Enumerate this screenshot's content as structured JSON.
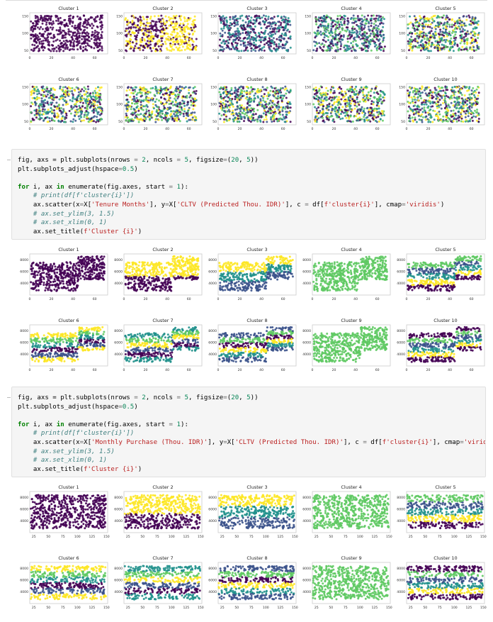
{
  "code_cells": [
    {
      "lines": [
        [
          [
            "fig, axs = plt.subplots(nrows ",
            ""
          ],
          [
            "=",
            "op"
          ],
          [
            " ",
            ""
          ],
          [
            "2",
            "num"
          ],
          [
            ", ncols ",
            ""
          ],
          [
            "=",
            "op"
          ],
          [
            " ",
            ""
          ],
          [
            "5",
            "num"
          ],
          [
            ", figsize",
            ""
          ],
          [
            "=",
            "op"
          ],
          [
            "(",
            ""
          ],
          [
            "20",
            "num"
          ],
          [
            ", ",
            ""
          ],
          [
            "5",
            "num"
          ],
          [
            "))",
            ""
          ]
        ],
        [
          [
            "plt.subplots_adjust(hspace",
            ""
          ],
          [
            "=",
            "op"
          ],
          [
            "0.5",
            "num"
          ],
          [
            ")",
            ""
          ]
        ],
        [
          [
            "",
            ""
          ]
        ],
        [
          [
            "for",
            "kw"
          ],
          [
            " i, ax ",
            ""
          ],
          [
            "in",
            "kw"
          ],
          [
            " enumerate(fig.axes, start ",
            ""
          ],
          [
            "=",
            "op"
          ],
          [
            " ",
            ""
          ],
          [
            "1",
            "num"
          ],
          [
            "):",
            ""
          ]
        ],
        [
          [
            "    ",
            ""
          ],
          [
            "# print(df[f'cluster{i}'])",
            "cm"
          ]
        ],
        [
          [
            "    ax.scatter(x",
            ""
          ],
          [
            "=",
            "op"
          ],
          [
            "X[",
            ""
          ],
          [
            "'Tenure Months'",
            "str"
          ],
          [
            "], y",
            ""
          ],
          [
            "=",
            "op"
          ],
          [
            "X[",
            ""
          ],
          [
            "'CLTV (Predicted Thou. IDR)'",
            "str"
          ],
          [
            "], c ",
            ""
          ],
          [
            "=",
            "op"
          ],
          [
            " df[",
            ""
          ],
          [
            "f'cluster{i}'",
            "str"
          ],
          [
            "], cmap",
            ""
          ],
          [
            "=",
            "op"
          ],
          [
            "'viridis'",
            "str"
          ],
          [
            ")",
            ""
          ]
        ],
        [
          [
            "    ",
            ""
          ],
          [
            "# ax.set_ylim(3, 1.5)",
            "cm"
          ]
        ],
        [
          [
            "    ",
            ""
          ],
          [
            "# ax.set_xlim(0, 1)",
            "cm"
          ]
        ],
        [
          [
            "    ax.set_title(",
            ""
          ],
          [
            "f'Cluster {i}'",
            "str"
          ],
          [
            ")",
            ""
          ]
        ]
      ]
    },
    {
      "lines": [
        [
          [
            "fig, axs = plt.subplots(nrows ",
            ""
          ],
          [
            "=",
            "op"
          ],
          [
            " ",
            ""
          ],
          [
            "2",
            "num"
          ],
          [
            ", ncols ",
            ""
          ],
          [
            "=",
            "op"
          ],
          [
            " ",
            ""
          ],
          [
            "5",
            "num"
          ],
          [
            ", figsize",
            ""
          ],
          [
            "=",
            "op"
          ],
          [
            "(",
            ""
          ],
          [
            "20",
            "num"
          ],
          [
            ", ",
            ""
          ],
          [
            "5",
            "num"
          ],
          [
            "))",
            ""
          ]
        ],
        [
          [
            "plt.subplots_adjust(hspace",
            ""
          ],
          [
            "=",
            "op"
          ],
          [
            "0.5",
            "num"
          ],
          [
            ")",
            ""
          ]
        ],
        [
          [
            "",
            ""
          ]
        ],
        [
          [
            "for",
            "kw"
          ],
          [
            " i, ax ",
            ""
          ],
          [
            "in",
            "kw"
          ],
          [
            " enumerate(fig.axes, start ",
            ""
          ],
          [
            "=",
            "op"
          ],
          [
            " ",
            ""
          ],
          [
            "1",
            "num"
          ],
          [
            "):",
            ""
          ]
        ],
        [
          [
            "    ",
            ""
          ],
          [
            "# print(df[f'cluster{i}'])",
            "cm"
          ]
        ],
        [
          [
            "    ax.scatter(x",
            ""
          ],
          [
            "=",
            "op"
          ],
          [
            "X[",
            ""
          ],
          [
            "'Monthly Purchase (Thou. IDR)'",
            "str"
          ],
          [
            "], y",
            ""
          ],
          [
            "=",
            "op"
          ],
          [
            "X[",
            ""
          ],
          [
            "'CLTV (Predicted Thou. IDR)'",
            "str"
          ],
          [
            "], c ",
            ""
          ],
          [
            "=",
            "op"
          ],
          [
            " df[",
            ""
          ],
          [
            "f'cluster{i}'",
            "str"
          ],
          [
            "], cmap",
            ""
          ],
          [
            "=",
            "op"
          ],
          [
            "'viridis",
            "str"
          ]
        ],
        [
          [
            "    ",
            ""
          ],
          [
            "# ax.set_ylim(3, 1.5)",
            "cm"
          ]
        ],
        [
          [
            "    ",
            ""
          ],
          [
            "# ax.set_xlim(0, 1)",
            "cm"
          ]
        ],
        [
          [
            "    ax.set_title(",
            ""
          ],
          [
            "f'Cluster {i}'",
            "str"
          ],
          [
            ")",
            ""
          ]
        ]
      ]
    }
  ],
  "chart_data": [
    {
      "type": "scatter",
      "name": "figure-1",
      "xlim": [
        0,
        72
      ],
      "ylim": [
        40,
        160
      ],
      "xticks": [
        "0",
        "20",
        "40",
        "60"
      ],
      "xtick_values": [
        0,
        20,
        40,
        60
      ],
      "yticks": [
        "50",
        "100",
        "150"
      ],
      "ytick_values": [
        50,
        100,
        150
      ],
      "pattern": "dots",
      "titles": [
        "Cluster 1",
        "Cluster 2",
        "Cluster 3",
        "Cluster 4",
        "Cluster 5",
        "Cluster 6",
        "Cluster 7",
        "Cluster 8",
        "Cluster 9",
        "Cluster 10"
      ]
    },
    {
      "type": "scatter",
      "name": "figure-2",
      "xlim": [
        0,
        72
      ],
      "ylim": [
        2000,
        9000
      ],
      "xticks": [
        "0",
        "20",
        "40",
        "60"
      ],
      "xtick_values": [
        0,
        20,
        40,
        60
      ],
      "yticks": [
        "4000",
        "6000",
        "8000"
      ],
      "ytick_values": [
        4000,
        6000,
        8000
      ],
      "pattern": "bands-tenure",
      "titles": [
        "Cluster 1",
        "Cluster 2",
        "Cluster 3",
        "Cluster 4",
        "Cluster 5",
        "Cluster 6",
        "Cluster 7",
        "Cluster 8",
        "Cluster 9",
        "Cluster 10"
      ]
    },
    {
      "type": "scatter",
      "name": "figure-3",
      "xlim": [
        18,
        152
      ],
      "ylim": [
        2000,
        9000
      ],
      "xticks": [
        "25",
        "50",
        "75",
        "100",
        "125",
        "150"
      ],
      "xtick_values": [
        25,
        50,
        75,
        100,
        125,
        150
      ],
      "yticks": [
        "4000",
        "6000",
        "8000"
      ],
      "ytick_values": [
        4000,
        6000,
        8000
      ],
      "pattern": "bands-purchase",
      "titles": [
        "Cluster 1",
        "Cluster 2",
        "Cluster 3",
        "Cluster 4",
        "Cluster 5",
        "Cluster 6",
        "Cluster 7",
        "Cluster 8",
        "Cluster 9",
        "Cluster 10"
      ]
    }
  ],
  "colors": {
    "viridis": [
      "#440154",
      "#3b528b",
      "#21918c",
      "#5ec962",
      "#fde725"
    ],
    "axes_border": "#cccccc",
    "tick_text": "#333333"
  }
}
